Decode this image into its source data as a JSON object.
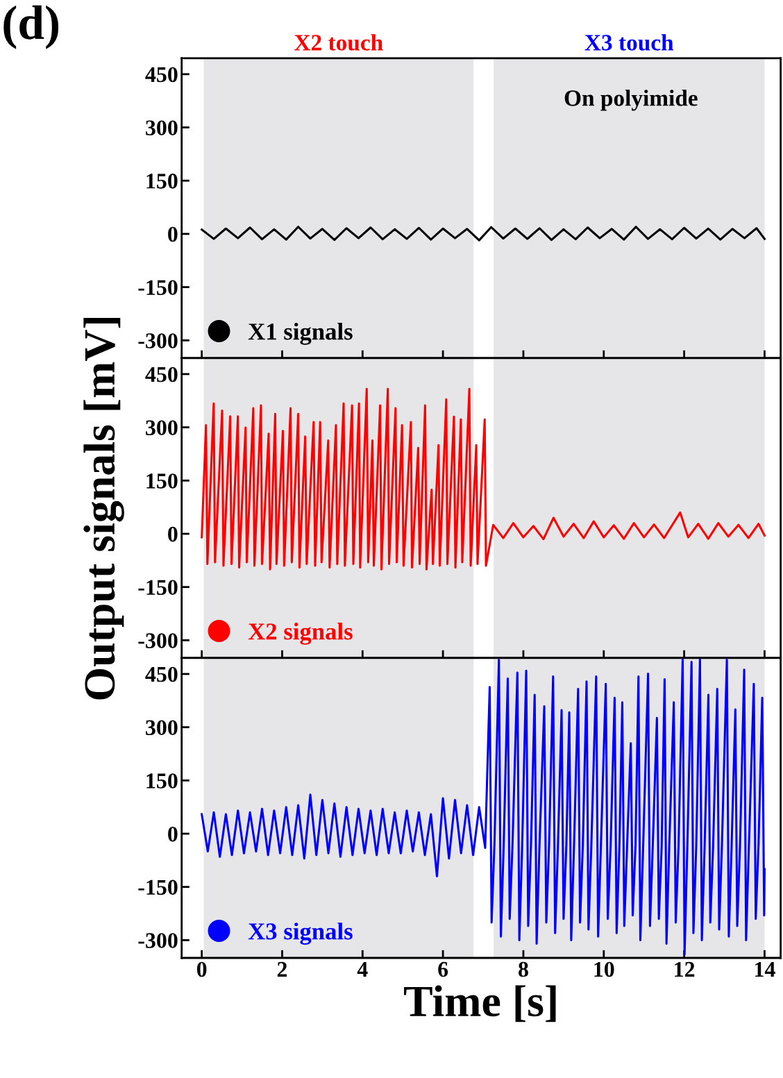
{
  "chart_data": [
    {
      "type": "line",
      "annotations": [
        "(d)",
        "On polyimide"
      ],
      "xlim": [
        -0.5,
        14.4
      ],
      "ylim": [
        -350,
        495
      ],
      "xticks": [
        0,
        2,
        4,
        6,
        8,
        10,
        12,
        14
      ],
      "yticks": [
        -300,
        -150,
        0,
        150,
        300,
        450
      ],
      "tick_labels": "y",
      "legend": "bottom left",
      "grid": false,
      "bands": [
        {
          "axis": "x",
          "from": 0.05,
          "to": 6.76,
          "label": "X2 touch",
          "color": "#e6e5e7"
        },
        {
          "axis": "x",
          "from": 7.26,
          "to": 14.0,
          "label": "X3 touch",
          "color": "#e6e5e7"
        }
      ],
      "series": [
        {
          "name": "X1 signals",
          "color": "#000000",
          "x": [
            0.0,
            0.3,
            0.6,
            0.9,
            1.2,
            1.5,
            1.8,
            2.1,
            2.4,
            2.7,
            3.0,
            3.3,
            3.6,
            3.9,
            4.2,
            4.5,
            4.8,
            5.1,
            5.4,
            5.7,
            6.0,
            6.3,
            6.6,
            6.9,
            7.2,
            7.5,
            7.8,
            8.1,
            8.4,
            8.7,
            9.0,
            9.3,
            9.6,
            9.9,
            10.2,
            10.5,
            10.8,
            11.1,
            11.4,
            11.7,
            12.0,
            12.3,
            12.6,
            12.9,
            13.2,
            13.5,
            13.8,
            14.0
          ],
          "values": [
            12,
            -14,
            15,
            -12,
            18,
            -15,
            13,
            -16,
            20,
            -13,
            14,
            -17,
            16,
            -12,
            18,
            -15,
            13,
            -14,
            17,
            -16,
            15,
            -12,
            14,
            -18,
            19,
            -13,
            15,
            -14,
            16,
            -17,
            13,
            -15,
            18,
            -12,
            14,
            -16,
            20,
            -14,
            13,
            -15,
            17,
            -13,
            15,
            -16,
            14,
            -12,
            16,
            -14
          ]
        }
      ]
    },
    {
      "type": "line",
      "ylabel": "Output signals [mV]",
      "xlim": [
        -0.5,
        14.4
      ],
      "ylim": [
        -350,
        495
      ],
      "xticks": [
        0,
        2,
        4,
        6,
        8,
        10,
        12,
        14
      ],
      "yticks": [
        -300,
        -150,
        0,
        150,
        300,
        450
      ],
      "tick_labels": "y",
      "legend": "bottom left",
      "grid": false,
      "bands": [
        {
          "axis": "x",
          "from": 0.05,
          "to": 6.76,
          "color": "#e6e5e7"
        },
        {
          "axis": "x",
          "from": 7.26,
          "to": 14.0,
          "color": "#e6e5e7"
        }
      ],
      "series": [
        {
          "name": "X2 signals",
          "color": "#ff0000",
          "x": [
            0.0,
            0.105,
            0.14,
            0.297,
            0.33,
            0.507,
            0.54,
            0.708,
            0.74,
            0.899,
            0.93,
            1.09,
            1.12,
            1.282,
            1.31,
            1.473,
            1.5,
            1.664,
            1.7,
            1.827,
            1.86,
            2.018,
            2.05,
            2.209,
            2.24,
            2.4,
            2.43,
            2.573,
            2.61,
            2.783,
            2.82,
            2.945,
            2.98,
            3.146,
            3.18,
            3.338,
            3.37,
            3.529,
            3.56,
            3.739,
            3.77,
            3.911,
            3.94,
            4.103,
            4.14,
            4.246,
            4.28,
            4.437,
            4.47,
            4.628,
            4.66,
            4.82,
            4.85,
            4.982,
            5.02,
            5.202,
            5.23,
            5.384,
            5.42,
            5.556,
            5.59,
            5.718,
            5.75,
            5.89,
            5.92,
            6.082,
            6.11,
            6.273,
            6.31,
            6.445,
            6.48,
            6.656,
            6.69,
            6.828,
            6.86,
            7.038,
            7.07,
            7.25,
            7.5,
            7.75,
            8.0,
            8.25,
            8.5,
            8.75,
            9.0,
            9.25,
            9.5,
            9.75,
            10.0,
            10.25,
            10.5,
            10.75,
            11.0,
            11.25,
            11.5,
            11.9,
            12.1,
            12.35,
            12.6,
            12.85,
            13.1,
            13.35,
            13.6,
            13.85,
            14.0
          ],
          "values": [
            -10,
            306,
            -85,
            367,
            -80,
            347,
            -90,
            331,
            -85,
            331,
            -95,
            299,
            -80,
            354,
            -90,
            362,
            -85,
            282,
            -100,
            338,
            -85,
            290,
            -90,
            354,
            -80,
            338,
            -95,
            274,
            -85,
            315,
            -90,
            315,
            -80,
            263,
            -95,
            306,
            -85,
            367,
            -90,
            362,
            -85,
            367,
            -95,
            408,
            -80,
            263,
            -90,
            362,
            -100,
            408,
            -85,
            354,
            -80,
            306,
            -90,
            315,
            -95,
            242,
            -85,
            362,
            -100,
            124,
            -85,
            250,
            -90,
            379,
            -85,
            330,
            -95,
            322,
            -80,
            408,
            -90,
            250,
            -85,
            322,
            -90,
            25,
            -12,
            30,
            -10,
            22,
            -15,
            45,
            -8,
            28,
            -12,
            35,
            -10,
            24,
            -14,
            30,
            -10,
            26,
            -12,
            60,
            -10,
            28,
            -14,
            30,
            -8,
            25,
            -12,
            28,
            -5
          ]
        }
      ]
    },
    {
      "type": "line",
      "xlabel": "Time [s]",
      "xlim": [
        -0.5,
        14.4
      ],
      "ylim": [
        -350,
        495
      ],
      "xticks": [
        0,
        2,
        4,
        6,
        8,
        10,
        12,
        14
      ],
      "yticks": [
        -300,
        -150,
        0,
        150,
        300,
        450
      ],
      "legend": "bottom left",
      "grid": false,
      "bands": [
        {
          "axis": "x",
          "from": 0.05,
          "to": 6.76,
          "color": "#e6e5e7"
        },
        {
          "axis": "x",
          "from": 7.26,
          "to": 14.0,
          "color": "#e6e5e7"
        }
      ],
      "series": [
        {
          "name": "X3 signals",
          "color": "#0000ff",
          "x": [
            0.0,
            0.15,
            0.3,
            0.45,
            0.6,
            0.75,
            0.9,
            1.05,
            1.2,
            1.35,
            1.5,
            1.65,
            1.8,
            1.95,
            2.1,
            2.25,
            2.4,
            2.55,
            2.7,
            2.85,
            3.0,
            3.15,
            3.3,
            3.45,
            3.6,
            3.75,
            3.9,
            4.05,
            4.2,
            4.35,
            4.5,
            4.65,
            4.8,
            4.95,
            5.1,
            5.25,
            5.4,
            5.55,
            5.7,
            5.85,
            6.0,
            6.15,
            6.3,
            6.45,
            6.6,
            6.75,
            6.9,
            7.05,
            7.162,
            7.21,
            7.28,
            7.392,
            7.44,
            7.51,
            7.612,
            7.66,
            7.73,
            7.851,
            7.9,
            7.97,
            8.071,
            8.12,
            8.19,
            8.281,
            8.33,
            8.4,
            8.52,
            8.57,
            8.64,
            8.74,
            8.79,
            8.86,
            8.951,
            9.0,
            9.07,
            9.142,
            9.19,
            9.26,
            9.362,
            9.41,
            9.48,
            9.572,
            9.62,
            9.69,
            9.811,
            9.86,
            9.93,
            10.05,
            10.1,
            10.17,
            10.27,
            10.32,
            10.39,
            10.461,
            10.51,
            10.58,
            10.672,
            10.72,
            10.79,
            10.863,
            10.91,
            10.98,
            11.102,
            11.15,
            11.22,
            11.322,
            11.37,
            11.44,
            11.513,
            11.56,
            11.63,
            11.742,
            11.79,
            11.86,
            11.962,
            12.01,
            12.08,
            12.183,
            12.23,
            12.3,
            12.393,
            12.44,
            12.51,
            12.603,
            12.65,
            12.72,
            12.823,
            12.87,
            12.94,
            13.062,
            13.11,
            13.18,
            13.273,
            13.32,
            13.39,
            13.493,
            13.54,
            13.61,
            13.732,
            13.78,
            13.85,
            13.942,
            13.99,
            14.0
          ],
          "values": [
            55,
            -50,
            60,
            -65,
            55,
            -60,
            65,
            -55,
            60,
            -50,
            70,
            -60,
            65,
            -55,
            75,
            -60,
            80,
            -70,
            110,
            -60,
            95,
            -55,
            85,
            -65,
            75,
            -60,
            70,
            -55,
            65,
            -60,
            70,
            -55,
            60,
            -55,
            65,
            -50,
            60,
            -60,
            55,
            -120,
            100,
            -70,
            95,
            -55,
            80,
            -60,
            75,
            -40,
            413,
            -250,
            -30,
            490,
            -290,
            -35,
            437,
            -240,
            -30,
            454,
            -300,
            -35,
            459,
            -260,
            -30,
            391,
            -310,
            -35,
            359,
            -250,
            -30,
            443,
            -280,
            -35,
            348,
            -240,
            -30,
            342,
            -300,
            -35,
            408,
            -250,
            -30,
            429,
            -270,
            -35,
            443,
            -290,
            -30,
            422,
            -240,
            -35,
            383,
            -280,
            -30,
            370,
            -260,
            -35,
            255,
            -230,
            -30,
            443,
            -300,
            -35,
            451,
            -260,
            -30,
            326,
            -240,
            -35,
            435,
            -310,
            -30,
            370,
            -250,
            -35,
            491,
            -340,
            -30,
            484,
            -280,
            -35,
            491,
            -300,
            -30,
            391,
            -250,
            -35,
            408,
            -270,
            -30,
            490,
            -290,
            -35,
            350,
            -260,
            -30,
            462,
            -300,
            -35,
            422,
            -240,
            -30,
            383,
            -230,
            -100
          ]
        }
      ]
    }
  ]
}
